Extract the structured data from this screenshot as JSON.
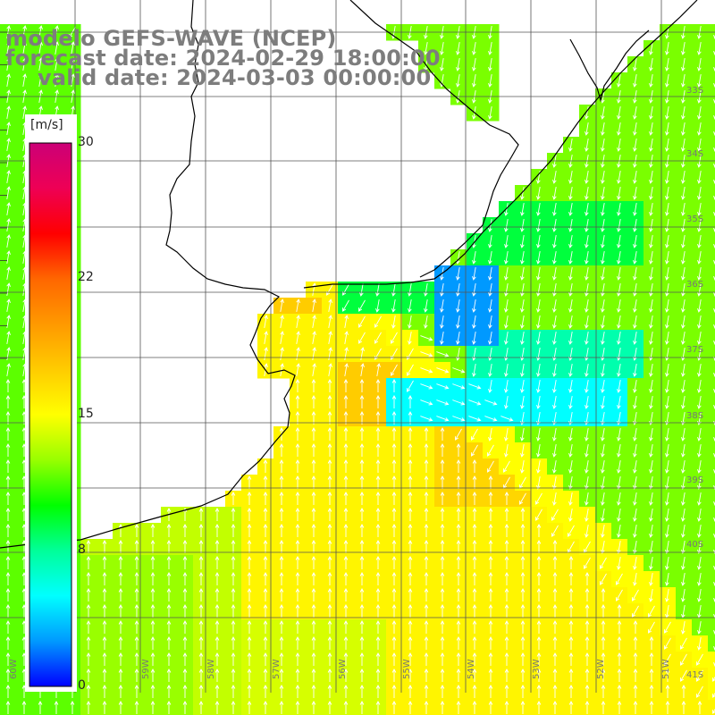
{
  "title": {
    "line1": "modelo GEFS-WAVE (NCEP)",
    "line2": "forecast date: 2024-02-29 18:00:00",
    "line3": "valid date: 2024-03-03 00:00:00"
  },
  "colorbar": {
    "unit": "[m/s]",
    "ticks": [
      "30",
      "22",
      "15",
      "8",
      "0"
    ],
    "tick_values": [
      30,
      22,
      15,
      8,
      0
    ],
    "stops": [
      "#0000ff",
      "#0099ff",
      "#00ffff",
      "#00ff99",
      "#00ff00",
      "#99ff00",
      "#ffff00",
      "#ffcc00",
      "#ff9900",
      "#ff6600",
      "#ff0000",
      "#ee0055",
      "#cc0077"
    ]
  },
  "map": {
    "variable": "wind speed",
    "longitude_labels": [
      "60W",
      "59W",
      "58W",
      "57W",
      "56W",
      "55W",
      "54W",
      "53W",
      "52W",
      "51W"
    ],
    "latitude_labels": [
      "33S",
      "34S",
      "35S",
      "36S",
      "37S",
      "38S",
      "39S",
      "40S",
      "41S"
    ],
    "land_color": "#ffffff",
    "coastline_color": "#000000",
    "grid_color": "#555555",
    "arrow_color": "#ffffff"
  }
}
